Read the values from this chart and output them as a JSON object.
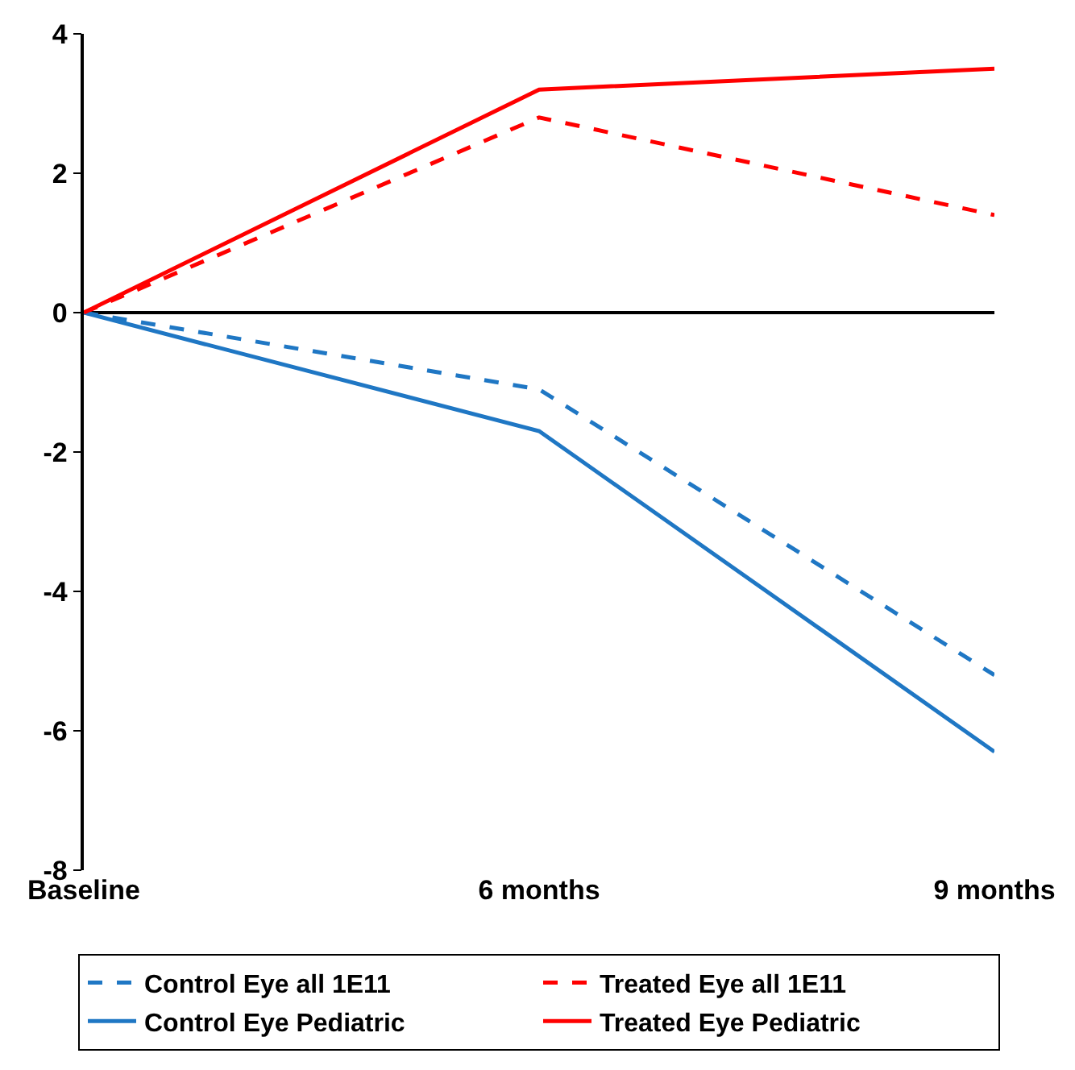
{
  "chart_data": {
    "type": "line",
    "categories": [
      "Baseline",
      "6 months",
      "9 months"
    ],
    "series": [
      {
        "name": "Control Eye all 1E11",
        "color": "#1f77c4",
        "line_style": "dashed",
        "values": [
          0,
          -1.1,
          -5.2
        ]
      },
      {
        "name": "Treated Eye all 1E11",
        "color": "#ff0000",
        "line_style": "dashed",
        "values": [
          0,
          2.8,
          1.4
        ]
      },
      {
        "name": "Control Eye Pediatric",
        "color": "#1f77c4",
        "line_style": "solid",
        "values": [
          0,
          -1.7,
          -6.3
        ]
      },
      {
        "name": "Treated Eye Pediatric",
        "color": "#ff0000",
        "line_style": "solid",
        "values": [
          0,
          3.2,
          3.5
        ]
      }
    ],
    "ylim": [
      -8,
      4
    ],
    "yticks": [
      -8,
      -6,
      -4,
      -2,
      0,
      2,
      4
    ],
    "legend": "bottom",
    "marker": "none"
  }
}
